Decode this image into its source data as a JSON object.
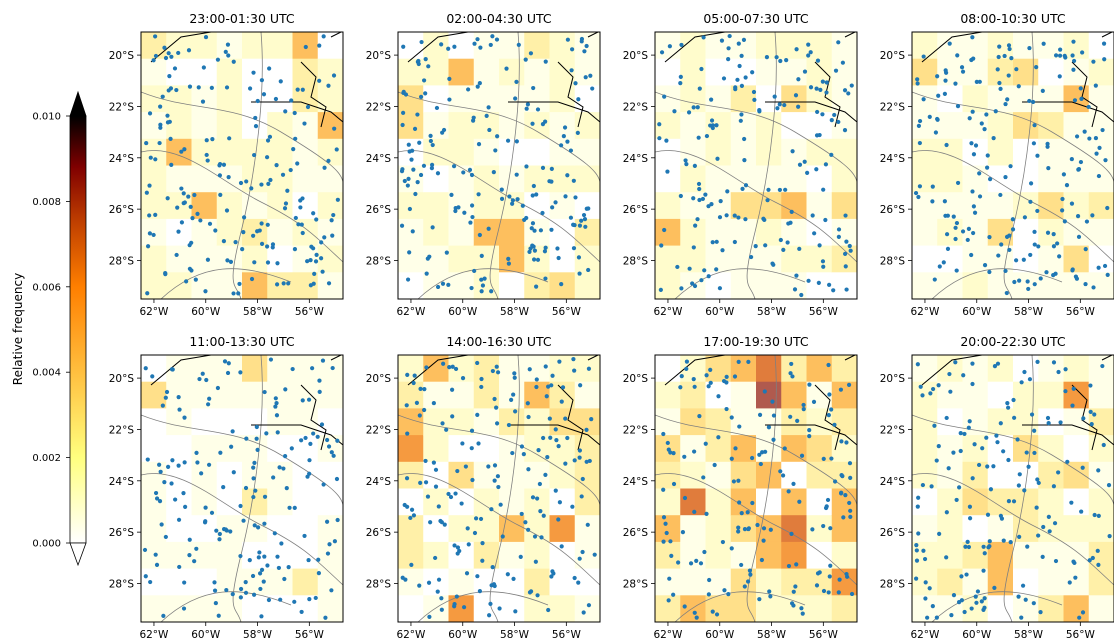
{
  "colorbar": {
    "label": "Relative frequency",
    "ticks": [
      "0.000",
      "0.002",
      "0.004",
      "0.006",
      "0.008",
      "0.010"
    ],
    "range": [
      0,
      0.01
    ],
    "colormap": "afmhot_r",
    "extend": "both"
  },
  "axes": {
    "x_ticks": [
      "62°W",
      "60°W",
      "58°W",
      "56°W"
    ],
    "y_ticks": [
      "20°S",
      "22°S",
      "24°S",
      "26°S",
      "28°S"
    ],
    "lon_range": [
      -62.5,
      -54.7
    ],
    "lat_range": [
      -29.5,
      -19.1
    ]
  },
  "colors": {
    "point": "#1f77b4",
    "border": "#000000",
    "river": "#7f7f7f"
  },
  "chart_data": [
    {
      "type": "heatmap",
      "title": "23:00-01:30 UTC"
    },
    {
      "type": "heatmap",
      "title": "02:00-04:30 UTC"
    },
    {
      "type": "heatmap",
      "title": "05:00-07:30 UTC"
    },
    {
      "type": "heatmap",
      "title": "08:00-10:30 UTC"
    },
    {
      "type": "heatmap",
      "title": "11:00-13:30 UTC"
    },
    {
      "type": "heatmap",
      "title": "14:00-16:30 UTC"
    },
    {
      "type": "heatmap",
      "title": "17:00-19:30 UTC"
    },
    {
      "type": "heatmap",
      "title": "20:00-22:30 UTC"
    }
  ]
}
